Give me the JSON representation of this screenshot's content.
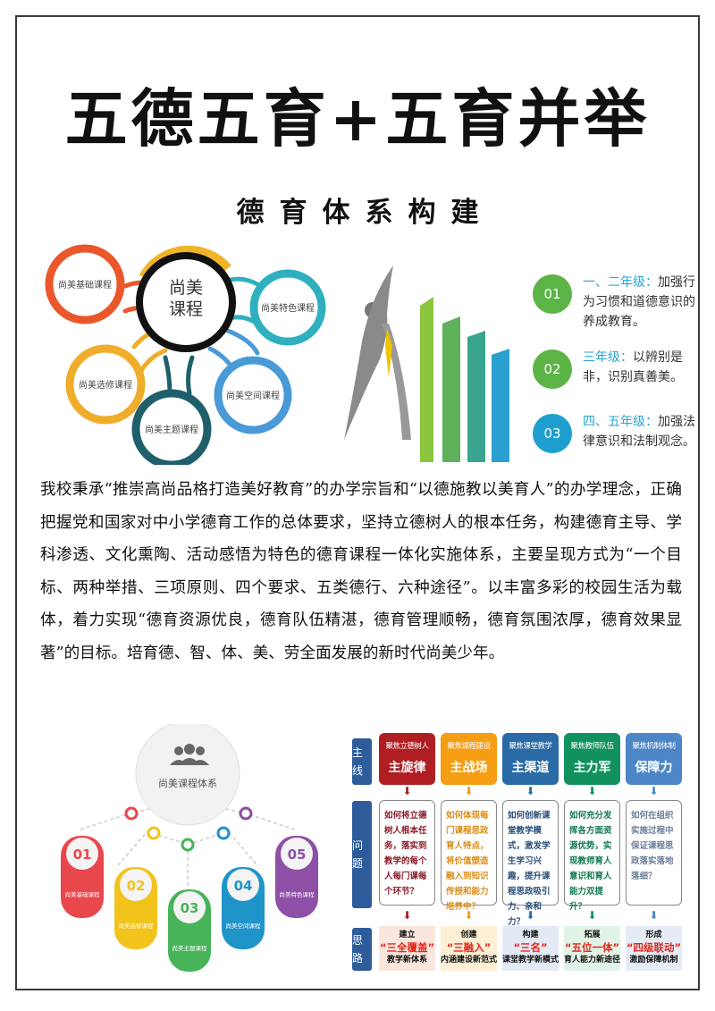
{
  "title": "五德五育+五育并举",
  "subtitle": "德育体系构建",
  "course_map": {
    "center": "尚美课程",
    "nodes": [
      {
        "label": "尚美基础课程",
        "color": "#e9572b"
      },
      {
        "label": "尚美特色课程",
        "color": "#2fb0bf"
      },
      {
        "label": "尚美选修课程",
        "color": "#f0ad2b"
      },
      {
        "label": "尚美主题课程",
        "color": "#1f5f6b"
      },
      {
        "label": "尚美空间课程",
        "color": "#4a9ad8"
      }
    ]
  },
  "grade_goals": [
    {
      "num": "01",
      "grade": "一、二年级：",
      "text": "加强行为习惯和道德意识的养成教育。",
      "color": "#5cb346"
    },
    {
      "num": "02",
      "grade": "三年级：",
      "text": "以辨别是非，识别真善美。",
      "color": "#5cb346"
    },
    {
      "num": "03",
      "grade": "四、五年级：",
      "text": "加强法律意识和法制观念。",
      "color": "#1f9fcf"
    }
  ],
  "paragraph": "我校秉承“推崇高尚品格打造美好教育”的办学宗旨和“以德施教以美育人”的办学理念，正确把握党和国家对中小学德育工作的总体要求，坚持立德树人的根本任务，构建德育主导、学科渗透、文化熏陶、活动感悟为特色的德育课程一体化实施体系，主要呈现方式为“一个目标、两种举措、三项原则、四个要求、五类德行、六种途径”。以丰富多彩的校园生活为载体，着力实现“德育资源优良，德育队伍精湛，德育管理顺畅，德育氛围浓厚，德育效果显著”的目标。培育德、智、体、美、劳全面发展的新时代尚美少年。",
  "course_system": {
    "center": "尚美课程体系",
    "icon": "people-group-icon",
    "items": [
      {
        "num": "01",
        "label": "尚美基础课程",
        "color": "#e8474c"
      },
      {
        "num": "02",
        "label": "尚美选修课程",
        "color": "#f2c31b"
      },
      {
        "num": "03",
        "label": "尚美主题课程",
        "color": "#47b45a"
      },
      {
        "num": "04",
        "label": "尚美空间课程",
        "color": "#1f94c9"
      },
      {
        "num": "05",
        "label": "尚美特色课程",
        "color": "#8e4fa6"
      }
    ]
  },
  "framework": {
    "row_labels": [
      "主线",
      "问题",
      "思路"
    ],
    "columns": [
      {
        "focus": "聚焦立德树人",
        "main": "主旋律",
        "question": "如何将立德树人根本任务，落实到教学的每个人每门课每个环节？",
        "verb": "建立",
        "key": "“三全覆盖”",
        "result": "教学新体系",
        "color": "#b01e23",
        "qcolor": "#8a1c2a",
        "bg": "#fbe6de"
      },
      {
        "focus": "聚焦课程建设",
        "main": "主战场",
        "question": "如何体现每门课程思政育人特点，将价值塑造融入到知识传授和能力培养中？",
        "verb": "创建",
        "key": "“三融入”",
        "result": "内涵建设新范式",
        "color": "#f59d13",
        "qcolor": "#d98e1a",
        "bg": "#fdf0d6"
      },
      {
        "focus": "聚焦课堂教学",
        "main": "主渠道",
        "question": "如何创新课堂教学模式，激发学生学习兴趣，提升课程思政吸引力、亲和力？",
        "verb": "构建",
        "key": "“三名”",
        "result": "课堂教学新模式",
        "color": "#2a6aa6",
        "qcolor": "#2b4f7a",
        "bg": "#e3e9f5"
      },
      {
        "focus": "聚焦教师队伍",
        "main": "主力军",
        "question": "如何充分发挥各方面资源优势，实现教师育人意识和育人能力双提升？",
        "verb": "拓展",
        "key": "“五位一体”",
        "result": "育人能力新途径",
        "color": "#11915e",
        "qcolor": "#137a50",
        "bg": "#e1f2e6"
      },
      {
        "focus": "聚焦机制体制",
        "main": "保障力",
        "question": "如何在组织实施过程中保证课程思政落实落地落细？",
        "verb": "形成",
        "key": "“四级联动”",
        "result": "激励保障机制",
        "color": "#4d86c6",
        "qcolor": "#6b7f99",
        "bg": "#e6ecf5"
      }
    ]
  }
}
